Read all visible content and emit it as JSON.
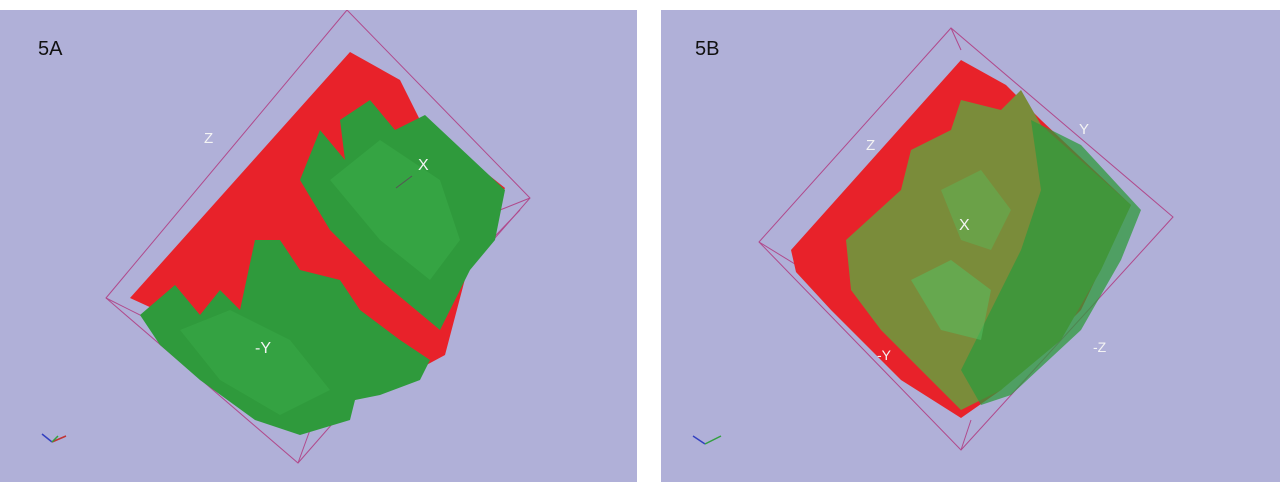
{
  "panels": [
    {
      "label": "5A",
      "axis_labels": {
        "z": "Z",
        "x": "X",
        "neg_y": "-Y"
      }
    },
    {
      "label": "5B",
      "axis_labels": {
        "z": "Z",
        "y": "Y",
        "x": "X",
        "neg_y": "-Y",
        "neg_z": "-Z"
      }
    }
  ],
  "colors": {
    "background": "#b0b0d8",
    "red_phase": "#e8222a",
    "green_phase": "#2f9a3c",
    "olive_overlap": "#7a8c3a",
    "bounding_box": "#b04a8c"
  }
}
